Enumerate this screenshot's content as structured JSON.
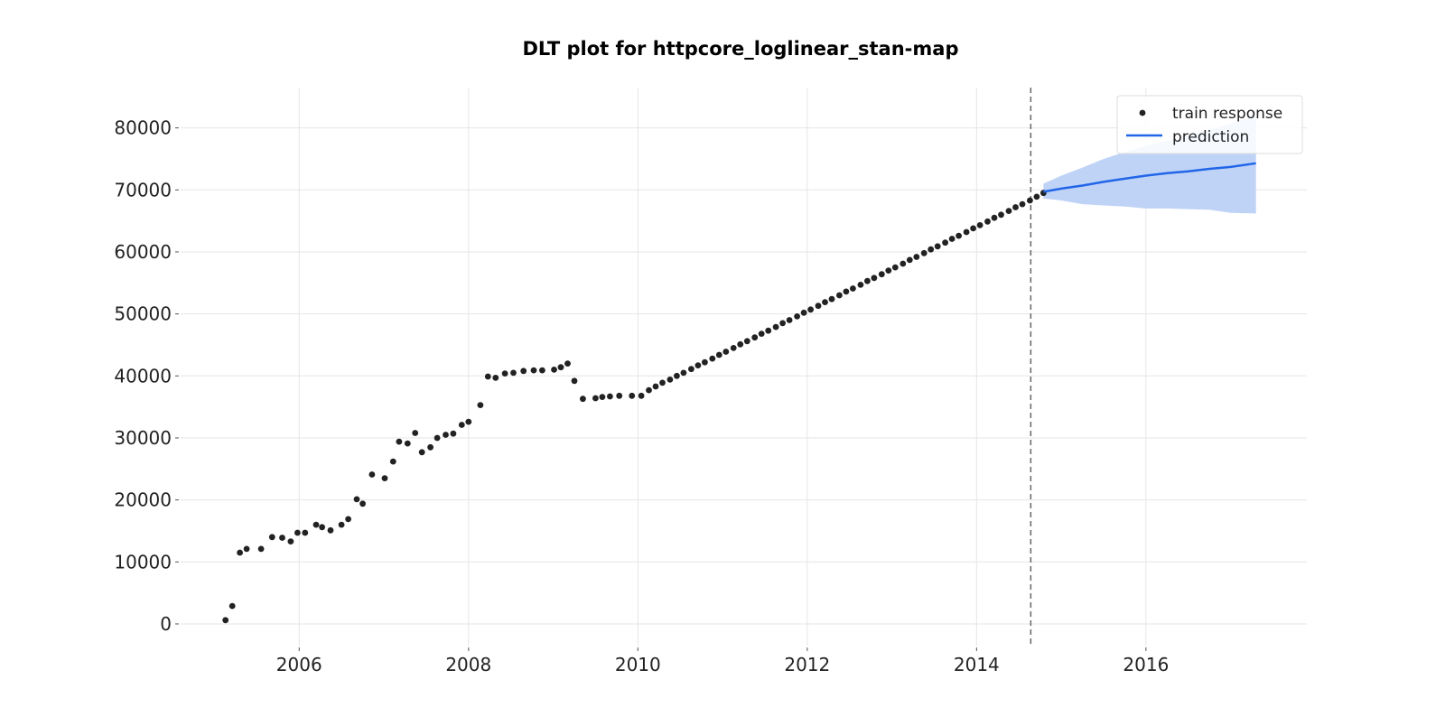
{
  "chart_data": {
    "type": "scatter",
    "title": "DLT plot for httpcore_loglinear_stan-map",
    "xlabel": "",
    "ylabel": "",
    "xlim": [
      2004.6,
      2017.9
    ],
    "ylim": [
      -3500,
      86500
    ],
    "x_ticks": [
      {
        "value": 2006,
        "label": "2006"
      },
      {
        "value": 2008,
        "label": "2008"
      },
      {
        "value": 2010,
        "label": "2010"
      },
      {
        "value": 2012,
        "label": "2012"
      },
      {
        "value": 2014,
        "label": "2014"
      },
      {
        "value": 2016,
        "label": "2016"
      }
    ],
    "y_ticks": [
      {
        "value": 0,
        "label": "0"
      },
      {
        "value": 10000,
        "label": "10000"
      },
      {
        "value": 20000,
        "label": "20000"
      },
      {
        "value": 30000,
        "label": "30000"
      },
      {
        "value": 40000,
        "label": "40000"
      },
      {
        "value": 50000,
        "label": "50000"
      },
      {
        "value": 60000,
        "label": "60000"
      },
      {
        "value": 70000,
        "label": "70000"
      },
      {
        "value": 80000,
        "label": "80000"
      }
    ],
    "grid": true,
    "legend_position": "top-right",
    "cutoff_x": 2014.64,
    "series": [
      {
        "name": "train response",
        "kind": "scatter",
        "color": "#222222",
        "points": [
          [
            2005.13,
            600
          ],
          [
            2005.21,
            2900
          ],
          [
            2005.3,
            11500
          ],
          [
            2005.38,
            12100
          ],
          [
            2005.55,
            12100
          ],
          [
            2005.68,
            14000
          ],
          [
            2005.8,
            13900
          ],
          [
            2005.9,
            13300
          ],
          [
            2005.98,
            14700
          ],
          [
            2006.07,
            14700
          ],
          [
            2006.2,
            16000
          ],
          [
            2006.27,
            15600
          ],
          [
            2006.37,
            15100
          ],
          [
            2006.5,
            16000
          ],
          [
            2006.58,
            16900
          ],
          [
            2006.68,
            20100
          ],
          [
            2006.75,
            19400
          ],
          [
            2006.86,
            24100
          ],
          [
            2007.01,
            23500
          ],
          [
            2007.11,
            26200
          ],
          [
            2007.18,
            29400
          ],
          [
            2007.28,
            29100
          ],
          [
            2007.37,
            30800
          ],
          [
            2007.45,
            27700
          ],
          [
            2007.55,
            28500
          ],
          [
            2007.63,
            30000
          ],
          [
            2007.73,
            30500
          ],
          [
            2007.82,
            30700
          ],
          [
            2007.92,
            32100
          ],
          [
            2008.0,
            32600
          ],
          [
            2008.14,
            35300
          ],
          [
            2008.23,
            39900
          ],
          [
            2008.32,
            39700
          ],
          [
            2008.43,
            40400
          ],
          [
            2008.53,
            40500
          ],
          [
            2008.65,
            40800
          ],
          [
            2008.77,
            40900
          ],
          [
            2008.87,
            40900
          ],
          [
            2009.01,
            41000
          ],
          [
            2009.09,
            41400
          ],
          [
            2009.17,
            42000
          ],
          [
            2009.25,
            39200
          ],
          [
            2009.35,
            36300
          ],
          [
            2009.5,
            36400
          ],
          [
            2009.58,
            36600
          ],
          [
            2009.67,
            36700
          ],
          [
            2009.78,
            36800
          ],
          [
            2009.93,
            36800
          ],
          [
            2010.04,
            36800
          ],
          [
            2010.13,
            37700
          ],
          [
            2010.21,
            38300
          ],
          [
            2010.29,
            38900
          ],
          [
            2010.38,
            39400
          ],
          [
            2010.46,
            40000
          ],
          [
            2010.54,
            40500
          ],
          [
            2010.63,
            41100
          ],
          [
            2010.71,
            41700
          ],
          [
            2010.79,
            42200
          ],
          [
            2010.88,
            42800
          ],
          [
            2010.96,
            43400
          ],
          [
            2011.04,
            43900
          ],
          [
            2011.13,
            44500
          ],
          [
            2011.21,
            45100
          ],
          [
            2011.29,
            45600
          ],
          [
            2011.38,
            46200
          ],
          [
            2011.46,
            46800
          ],
          [
            2011.54,
            47300
          ],
          [
            2011.63,
            47900
          ],
          [
            2011.71,
            48500
          ],
          [
            2011.79,
            49000
          ],
          [
            2011.88,
            49600
          ],
          [
            2011.96,
            50200
          ],
          [
            2012.04,
            50700
          ],
          [
            2012.13,
            51300
          ],
          [
            2012.21,
            51900
          ],
          [
            2012.29,
            52400
          ],
          [
            2012.38,
            53000
          ],
          [
            2012.46,
            53600
          ],
          [
            2012.54,
            54100
          ],
          [
            2012.63,
            54700
          ],
          [
            2012.71,
            55300
          ],
          [
            2012.79,
            55800
          ],
          [
            2012.88,
            56400
          ],
          [
            2012.96,
            57000
          ],
          [
            2013.04,
            57500
          ],
          [
            2013.13,
            58100
          ],
          [
            2013.21,
            58700
          ],
          [
            2013.29,
            59200
          ],
          [
            2013.38,
            59800
          ],
          [
            2013.46,
            60400
          ],
          [
            2013.54,
            60900
          ],
          [
            2013.63,
            61500
          ],
          [
            2013.71,
            62100
          ],
          [
            2013.79,
            62600
          ],
          [
            2013.88,
            63200
          ],
          [
            2013.96,
            63800
          ],
          [
            2014.04,
            64300
          ],
          [
            2014.13,
            64900
          ],
          [
            2014.21,
            65500
          ],
          [
            2014.29,
            66000
          ],
          [
            2014.38,
            66600
          ],
          [
            2014.46,
            67200
          ],
          [
            2014.54,
            67700
          ],
          [
            2014.63,
            68300
          ],
          [
            2014.71,
            68900
          ],
          [
            2014.79,
            69500
          ]
        ]
      },
      {
        "name": "prediction",
        "kind": "line",
        "color": "#2166e8",
        "points": [
          [
            2014.79,
            69700
          ],
          [
            2015.0,
            70200
          ],
          [
            2015.25,
            70700
          ],
          [
            2015.5,
            71300
          ],
          [
            2015.75,
            71800
          ],
          [
            2016.0,
            72300
          ],
          [
            2016.25,
            72700
          ],
          [
            2016.5,
            73000
          ],
          [
            2016.75,
            73400
          ],
          [
            2017.0,
            73700
          ],
          [
            2017.3,
            74300
          ]
        ]
      }
    ],
    "interval": {
      "color": "#bcd1f7",
      "upper": [
        [
          2014.79,
          71000
        ],
        [
          2015.0,
          72300
        ],
        [
          2015.25,
          73600
        ],
        [
          2015.5,
          75000
        ],
        [
          2015.75,
          76100
        ],
        [
          2016.0,
          77100
        ],
        [
          2016.25,
          77900
        ],
        [
          2016.5,
          78800
        ],
        [
          2016.75,
          79700
        ],
        [
          2017.0,
          80700
        ],
        [
          2017.3,
          81900
        ]
      ],
      "lower": [
        [
          2014.79,
          68600
        ],
        [
          2015.0,
          68300
        ],
        [
          2015.25,
          67700
        ],
        [
          2015.5,
          67500
        ],
        [
          2015.75,
          67300
        ],
        [
          2016.0,
          67000
        ],
        [
          2016.25,
          67000
        ],
        [
          2016.5,
          66900
        ],
        [
          2016.75,
          66800
        ],
        [
          2017.0,
          66300
        ],
        [
          2017.3,
          66200
        ]
      ]
    }
  }
}
